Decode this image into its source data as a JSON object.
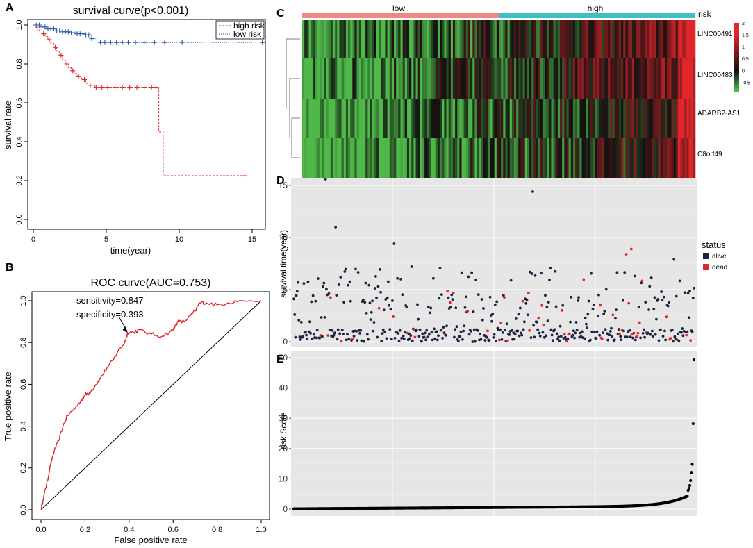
{
  "colors": {
    "high": "#e0262b",
    "low": "#2b5aa8",
    "risk_low_bar": "#f08784",
    "risk_high_bar": "#3dbfc4",
    "alive": "#1e2340",
    "dead": "#e0262b",
    "gg_panel": "#e6e6e6",
    "heat_low": "#4eb848",
    "heat_mid": "#111111",
    "heat_high": "#e0262b"
  },
  "panels": {
    "A": "A",
    "B": "B",
    "C": "C",
    "D": "D",
    "E": "E"
  },
  "chart_data": [
    {
      "id": "A",
      "type": "line",
      "title": "survival curve(p<0.001)",
      "xlabel": "time(year)",
      "ylabel": "survival rate",
      "xlim": [
        0,
        16
      ],
      "ylim": [
        0,
        1.0
      ],
      "xticks": [
        "0",
        "5",
        "10",
        "15"
      ],
      "yticks": [
        "0.0",
        "0.2",
        "0.4",
        "0.6",
        "0.8",
        "1.0"
      ],
      "legend": [
        "high risk",
        "low risk"
      ],
      "legend_position": "top-right",
      "series": [
        {
          "name": "high risk",
          "x": [
            0,
            0.2,
            0.4,
            0.6,
            0.8,
            1.0,
            1.2,
            1.4,
            1.6,
            1.8,
            2.0,
            2.2,
            2.4,
            2.6,
            2.8,
            3.0,
            3.3,
            3.6,
            3.9,
            4.2,
            8.6,
            8.6,
            8.9,
            8.9,
            14.5
          ],
          "y": [
            1.0,
            0.985,
            0.97,
            0.955,
            0.94,
            0.925,
            0.905,
            0.885,
            0.865,
            0.845,
            0.82,
            0.8,
            0.78,
            0.765,
            0.75,
            0.735,
            0.72,
            0.7,
            0.69,
            0.68,
            0.68,
            0.45,
            0.45,
            0.225,
            0.225
          ],
          "censor_x": [
            0.3,
            0.7,
            1.1,
            1.5,
            1.9,
            2.3,
            2.7,
            3.1,
            3.5,
            3.9,
            4.3,
            4.7,
            5.1,
            5.6,
            6.1,
            6.6,
            7.1,
            7.6,
            8.1,
            8.4,
            14.5
          ]
        },
        {
          "name": "low risk",
          "x": [
            0,
            0.5,
            1.0,
            1.5,
            2.0,
            2.5,
            3.0,
            3.5,
            4.0,
            4.5,
            15.7
          ],
          "y": [
            1.0,
            0.99,
            0.98,
            0.97,
            0.965,
            0.96,
            0.955,
            0.95,
            0.93,
            0.91,
            0.91
          ],
          "censor_x": [
            0.2,
            0.4,
            0.6,
            0.8,
            1.0,
            1.2,
            1.4,
            1.6,
            1.8,
            2.0,
            2.2,
            2.4,
            2.6,
            2.8,
            3.0,
            3.2,
            3.4,
            3.6,
            3.8,
            4.0,
            4.6,
            4.9,
            5.3,
            5.7,
            6.1,
            6.5,
            7.0,
            7.6,
            8.3,
            9.0,
            10.2,
            15.7
          ]
        }
      ]
    },
    {
      "id": "B",
      "type": "line",
      "title": "ROC curve(AUC=0.753)",
      "xlabel": "False positive rate",
      "ylabel": "True positive rate",
      "xlim": [
        0,
        1
      ],
      "ylim": [
        0,
        1
      ],
      "xticks": [
        "0.0",
        "0.2",
        "0.4",
        "0.6",
        "0.8",
        "1.0"
      ],
      "yticks": [
        "0.0",
        "0.2",
        "0.4",
        "0.6",
        "0.8",
        "1.0"
      ],
      "annotations": [
        "sensitivity=0.847",
        "specificity=0.393"
      ],
      "arrow_point": [
        0.393,
        0.847
      ],
      "fpr": [
        0,
        0.01,
        0.02,
        0.03,
        0.04,
        0.05,
        0.06,
        0.08,
        0.1,
        0.12,
        0.15,
        0.18,
        0.2,
        0.22,
        0.25,
        0.27,
        0.3,
        0.33,
        0.35,
        0.38,
        0.393,
        0.42,
        0.45,
        0.5,
        0.55,
        0.6,
        0.62,
        0.65,
        0.68,
        0.7,
        0.72,
        0.75,
        0.8,
        0.85,
        0.9,
        1.0
      ],
      "tpr": [
        0,
        0.05,
        0.1,
        0.14,
        0.2,
        0.24,
        0.28,
        0.33,
        0.4,
        0.45,
        0.48,
        0.52,
        0.55,
        0.56,
        0.6,
        0.63,
        0.68,
        0.72,
        0.76,
        0.8,
        0.847,
        0.85,
        0.86,
        0.84,
        0.83,
        0.86,
        0.9,
        0.9,
        0.93,
        0.95,
        0.99,
        0.99,
        0.98,
        0.99,
        1.0,
        1.0
      ]
    },
    {
      "id": "C",
      "type": "heatmap",
      "annotation_label": "risk",
      "groups": [
        "low",
        "high"
      ],
      "rows": [
        "LINC00491",
        "LINC00483",
        "ADARB2-AS1",
        "C8orf49"
      ],
      "colorbar_ticks": [
        "2",
        "1.5",
        "1",
        "0.5",
        "0",
        "-0.5"
      ],
      "n_columns": 180
    },
    {
      "id": "D",
      "type": "scatter",
      "ylabel": "survival time(year)",
      "ylim": [
        0,
        16
      ],
      "yticks": [
        "0",
        "5",
        "10",
        "15"
      ],
      "legend_title": "status",
      "legend": [
        "alive",
        "dead"
      ],
      "n_patients": 480,
      "dead_fraction": 0.1,
      "outliers": [
        {
          "rank": 38,
          "time": 15.6,
          "status": "alive"
        },
        {
          "rank": 50,
          "time": 11.0,
          "status": "alive"
        },
        {
          "rank": 286,
          "time": 14.4,
          "status": "alive"
        },
        {
          "rank": 120,
          "time": 9.4,
          "status": "alive"
        },
        {
          "rank": 398,
          "time": 8.4,
          "status": "dead"
        },
        {
          "rank": 404,
          "time": 8.9,
          "status": "dead"
        },
        {
          "rank": 455,
          "time": 7.9,
          "status": "alive"
        }
      ]
    },
    {
      "id": "E",
      "type": "scatter",
      "ylabel": "risk Score",
      "ylim": [
        0,
        50
      ],
      "yticks": [
        "0",
        "10",
        "20",
        "30",
        "40",
        "50"
      ],
      "n_patients": 480,
      "top_values": [
        49.3,
        28.2,
        14.8,
        12.1,
        9.4,
        7.8,
        6.9,
        6.2
      ]
    }
  ]
}
